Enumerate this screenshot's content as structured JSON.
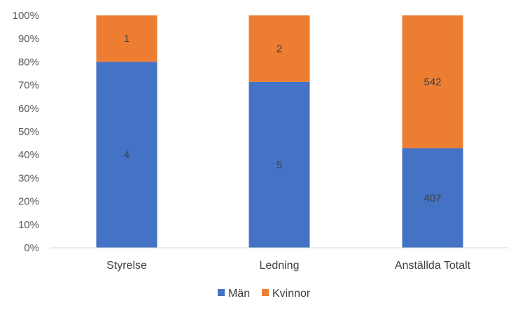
{
  "chart_data": {
    "type": "bar",
    "stacked": true,
    "normalized": true,
    "categories": [
      "Styrelse",
      "Ledning",
      "Anställda Totalt"
    ],
    "series": [
      {
        "name": "Män",
        "values": [
          4,
          5,
          407
        ],
        "color": "#4472C4"
      },
      {
        "name": "Kvinnor",
        "values": [
          1,
          2,
          542
        ],
        "color": "#ED7D31"
      }
    ],
    "yticks": [
      "0%",
      "10%",
      "20%",
      "30%",
      "40%",
      "50%",
      "60%",
      "70%",
      "80%",
      "90%",
      "100%"
    ],
    "ylim": [
      0,
      100
    ],
    "grid": false,
    "legend": "bottom"
  }
}
